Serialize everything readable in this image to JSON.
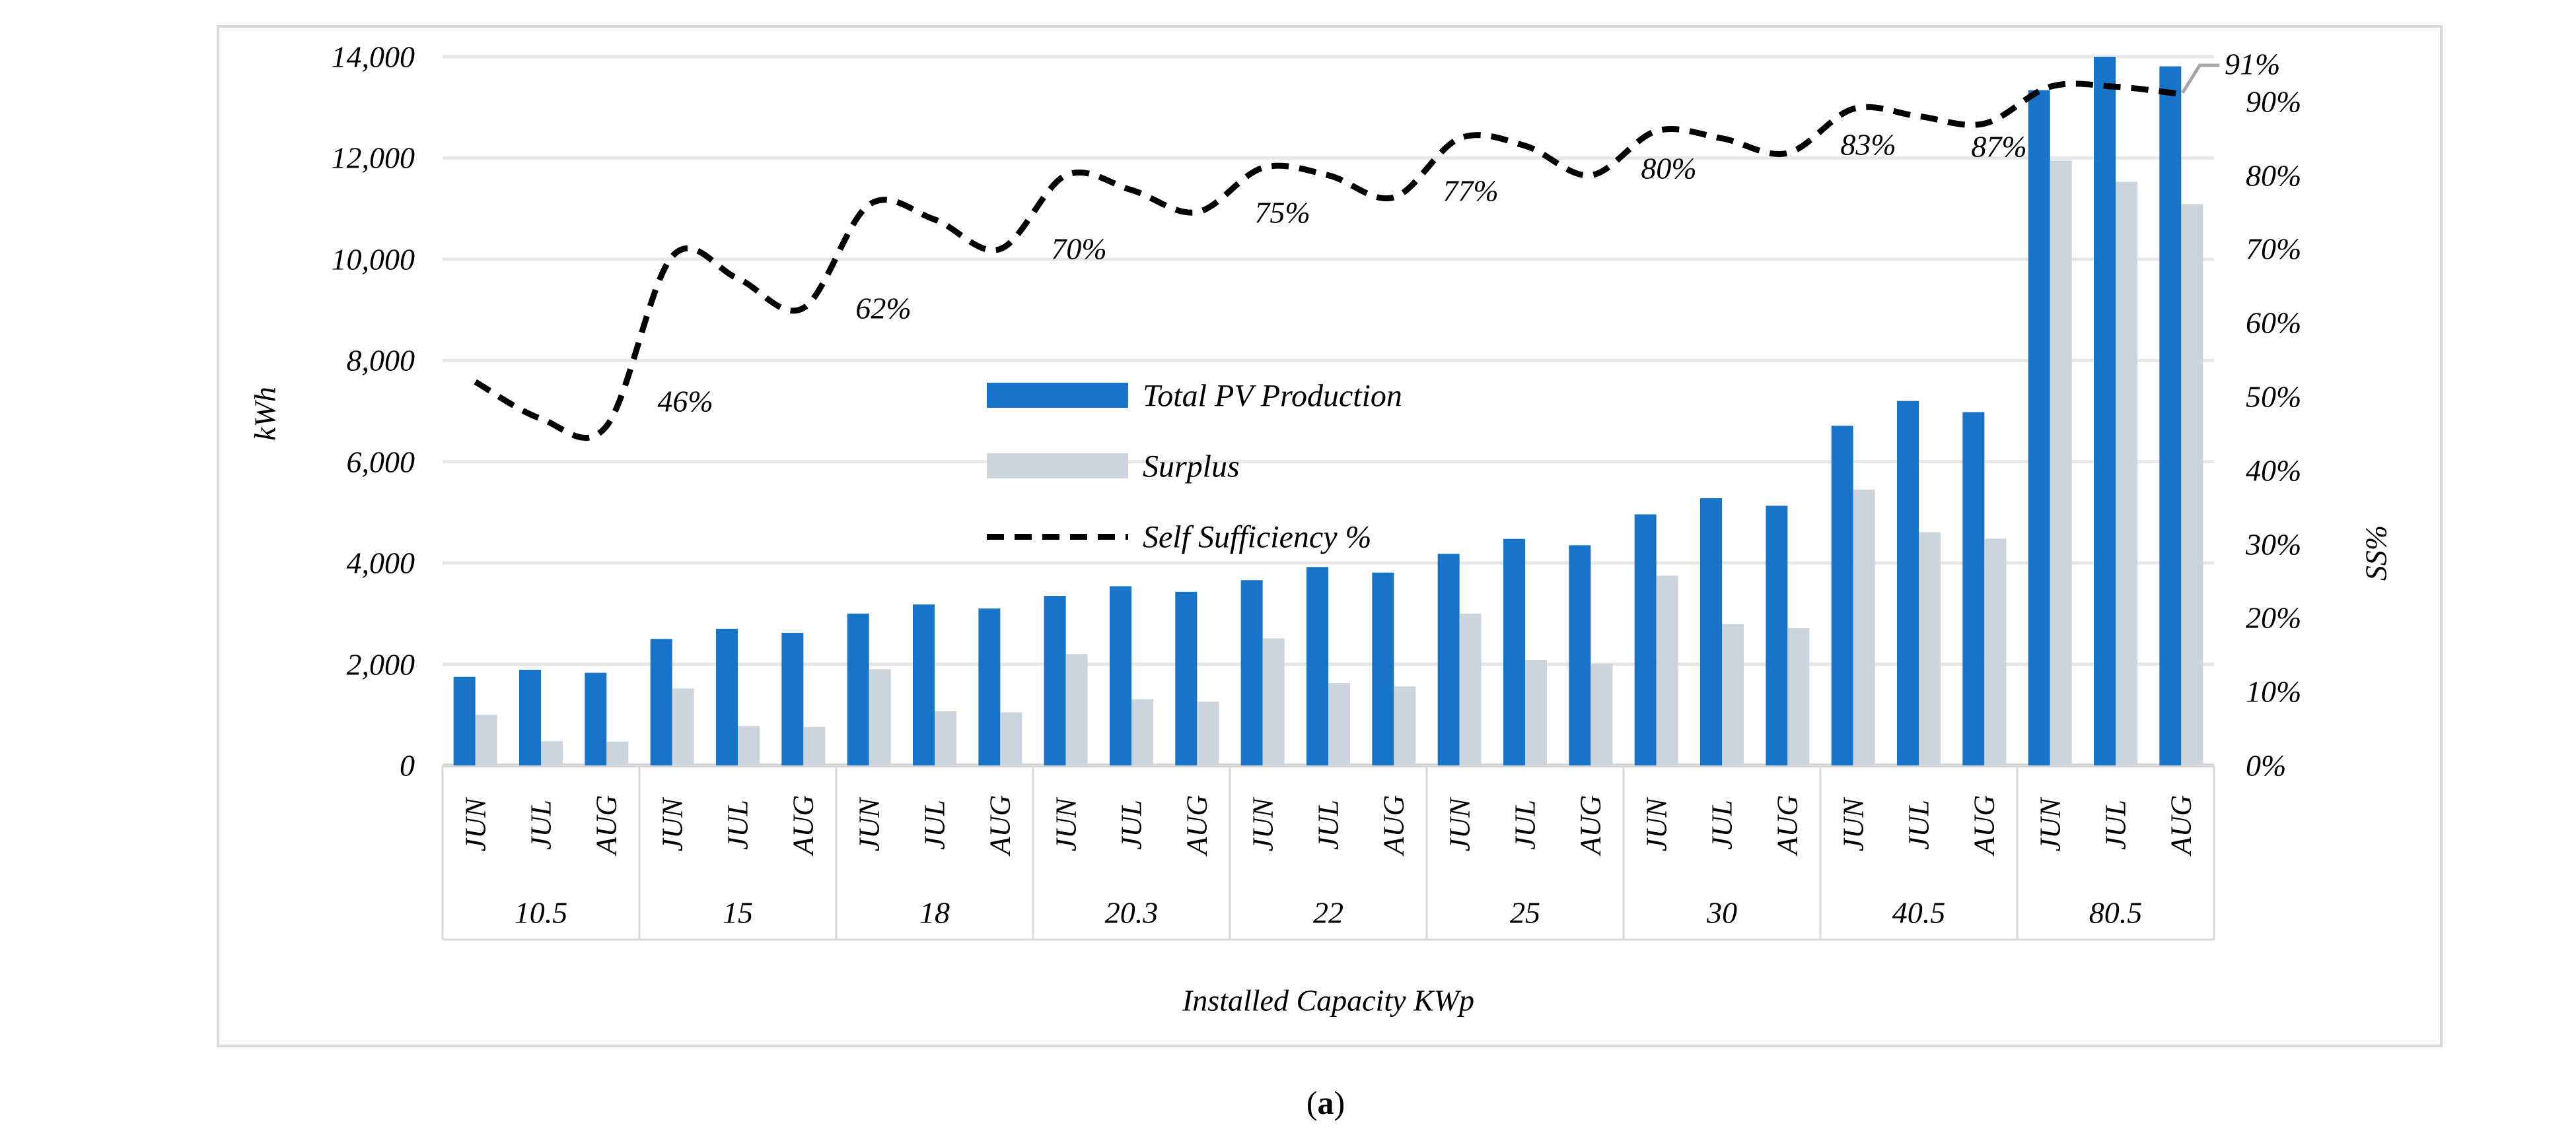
{
  "chart_data": {
    "type": "bar+line combo",
    "x_axis": {
      "label": "Installed Capacity KWp",
      "group_labels": [
        "10.5",
        "15",
        "18",
        "20.3",
        "22",
        "25",
        "30",
        "40.5",
        "80.5"
      ],
      "month_labels": [
        "JUN",
        "JUL",
        "AUG"
      ]
    },
    "y_left": {
      "label": "kWh",
      "min": 0,
      "max": 14000,
      "tick_step": 2000,
      "ticks": [
        "0",
        "2,000",
        "4,000",
        "6,000",
        "8,000",
        "10,000",
        "12,000",
        "14,000"
      ]
    },
    "y_right": {
      "label": "SS%",
      "min": 0,
      "max": 100,
      "tick_step": 10,
      "ticks": [
        "0%",
        "10%",
        "20%",
        "30%",
        "40%",
        "50%",
        "60%",
        "70%",
        "80%",
        "90%"
      ]
    },
    "series": [
      {
        "name": "Total PV Production",
        "type": "bar",
        "axis": "left",
        "color": "#1774C8",
        "values": [
          1750,
          1890,
          1830,
          2500,
          2700,
          2620,
          3000,
          3180,
          3100,
          3350,
          3540,
          3430,
          3660,
          3920,
          3810,
          4180,
          4475,
          4350,
          4960,
          5280,
          5130,
          6710,
          7200,
          6980,
          13340,
          14000,
          13810
        ]
      },
      {
        "name": "Surplus",
        "type": "bar",
        "axis": "left",
        "color": "#CCD5DD",
        "values": [
          1000,
          480,
          470,
          1520,
          780,
          760,
          1900,
          1070,
          1050,
          2200,
          1310,
          1260,
          2510,
          1630,
          1560,
          3000,
          2085,
          2010,
          3750,
          2790,
          2710,
          5450,
          4610,
          4480,
          11950,
          11530,
          11090
        ]
      },
      {
        "name": "Self Sufficiency %",
        "type": "line",
        "dashed": true,
        "axis": "right",
        "color": "#000000",
        "values": [
          52,
          47,
          46,
          69,
          66,
          62,
          76,
          74,
          70,
          80,
          78,
          75,
          81,
          80,
          77,
          85,
          84,
          80,
          86,
          85,
          83,
          89,
          88,
          87,
          92,
          92,
          91
        ]
      }
    ],
    "point_labels": [
      "46%",
      "62%",
      "70%",
      "75%",
      "77%",
      "80%",
      "83%",
      "87%",
      "91%"
    ],
    "legend": [
      {
        "label": "Total PV Production",
        "swatch": "blue-bar"
      },
      {
        "label": "Surplus",
        "swatch": "gray-bar"
      },
      {
        "label": "Self Sufficiency %",
        "swatch": "black-dashed-line"
      }
    ],
    "caption": {
      "open": "(",
      "letter": "a",
      "close": ")"
    },
    "colors": {
      "pv_bar": "#1774C8",
      "surplus_bar": "#CCD5DD",
      "gridline": "#E7E7E7",
      "frame": "#D9D9D9",
      "leader_line": "#A6A6A6",
      "ss_line": "#000000"
    },
    "grid": true,
    "legend_position": "center-inside"
  }
}
